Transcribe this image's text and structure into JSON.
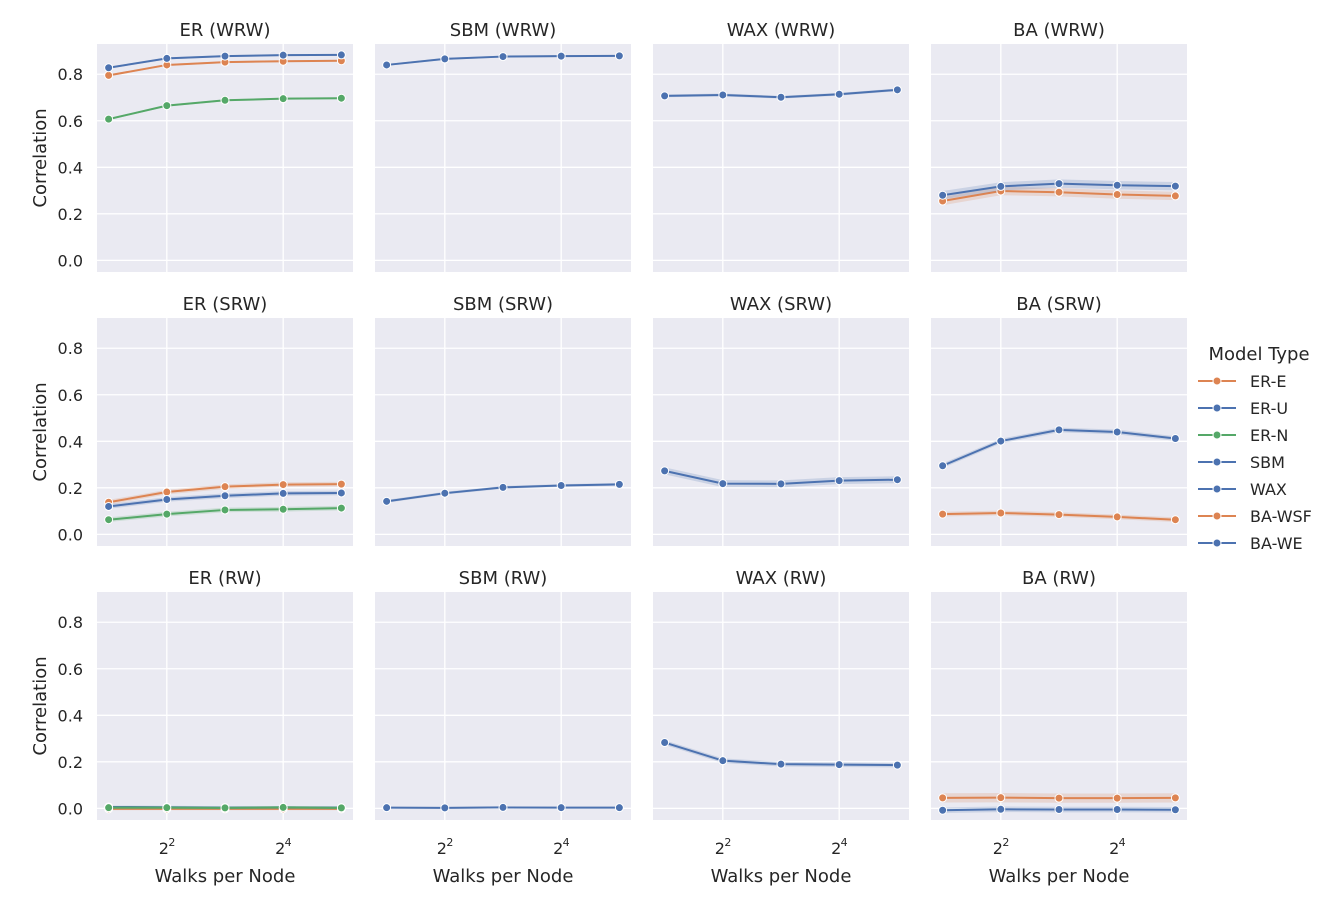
{
  "figure": {
    "x_label": "Walks per Node",
    "y_label": "Correlation",
    "legend_title": "Model Type",
    "legend_placement": "right"
  },
  "series_styles": {
    "ER-E": {
      "color": "#dd8452"
    },
    "ER-U": {
      "color": "#4c72b0"
    },
    "ER-N": {
      "color": "#55a868"
    },
    "SBM": {
      "color": "#4c72b0"
    },
    "WAX": {
      "color": "#4c72b0"
    },
    "BA-WSF": {
      "color": "#dd8452"
    },
    "BA-WE": {
      "color": "#4c72b0"
    }
  },
  "theme": {
    "panel_bg": "#eaeaf2",
    "grid": "#ffffff",
    "marker_edge": "#ffffff"
  },
  "chart_data": {
    "type": "line",
    "x": [
      2,
      4,
      8,
      16,
      32
    ],
    "x_scale": "log2",
    "xticks": [
      {
        "value": 4,
        "base": "2",
        "exp": "2"
      },
      {
        "value": 16,
        "base": "2",
        "exp": "4"
      }
    ],
    "ylim": [
      -0.05,
      0.93
    ],
    "yticks": [
      0.0,
      0.2,
      0.4,
      0.6,
      0.8
    ],
    "ytick_labels": [
      "0.0",
      "0.2",
      "0.4",
      "0.6",
      "0.8"
    ],
    "legend": [
      "ER-E",
      "ER-U",
      "ER-N",
      "SBM",
      "WAX",
      "BA-WSF",
      "BA-WE"
    ],
    "panels": [
      {
        "title": "ER (WRW)",
        "series": [
          {
            "name": "ER-E",
            "values": [
              0.795,
              0.84,
              0.852,
              0.856,
              0.858
            ],
            "ci": 0.004
          },
          {
            "name": "ER-U",
            "values": [
              0.828,
              0.868,
              0.878,
              0.882,
              0.883
            ],
            "ci": 0.004
          },
          {
            "name": "ER-N",
            "values": [
              0.607,
              0.665,
              0.688,
              0.695,
              0.697
            ],
            "ci": 0.004
          }
        ]
      },
      {
        "title": "SBM (WRW)",
        "series": [
          {
            "name": "SBM",
            "values": [
              0.84,
              0.866,
              0.876,
              0.878,
              0.879
            ],
            "ci": 0.004
          }
        ]
      },
      {
        "title": "WAX (WRW)",
        "series": [
          {
            "name": "WAX",
            "values": [
              0.707,
              0.711,
              0.701,
              0.714,
              0.733
            ],
            "ci": 0.006
          }
        ]
      },
      {
        "title": "BA (WRW)",
        "series": [
          {
            "name": "BA-WSF",
            "values": [
              0.255,
              0.298,
              0.293,
              0.283,
              0.277
            ],
            "ci": 0.018
          },
          {
            "name": "BA-WE",
            "values": [
              0.28,
              0.318,
              0.33,
              0.323,
              0.319
            ],
            "ci": 0.018
          }
        ]
      },
      {
        "title": "ER (SRW)",
        "series": [
          {
            "name": "ER-E",
            "values": [
              0.138,
              0.182,
              0.205,
              0.214,
              0.216
            ],
            "ci": 0.01
          },
          {
            "name": "ER-U",
            "values": [
              0.12,
              0.15,
              0.166,
              0.176,
              0.178
            ],
            "ci": 0.01
          },
          {
            "name": "ER-N",
            "values": [
              0.063,
              0.087,
              0.105,
              0.108,
              0.113
            ],
            "ci": 0.01
          }
        ]
      },
      {
        "title": "SBM (SRW)",
        "series": [
          {
            "name": "SBM",
            "values": [
              0.142,
              0.177,
              0.202,
              0.21,
              0.215
            ],
            "ci": 0.006
          }
        ]
      },
      {
        "title": "WAX (SRW)",
        "series": [
          {
            "name": "WAX",
            "values": [
              0.273,
              0.218,
              0.217,
              0.231,
              0.235
            ],
            "ci": 0.015
          }
        ]
      },
      {
        "title": "BA (SRW)",
        "series": [
          {
            "name": "BA-WSF",
            "values": [
              0.087,
              0.092,
              0.085,
              0.075,
              0.063
            ],
            "ci": 0.01
          },
          {
            "name": "BA-WE",
            "values": [
              0.295,
              0.401,
              0.449,
              0.44,
              0.412
            ],
            "ci": 0.01
          }
        ]
      },
      {
        "title": "ER (RW)",
        "series": [
          {
            "name": "ER-E",
            "values": [
              -0.002,
              -0.002,
              -0.002,
              -0.002,
              -0.002
            ],
            "ci": 0.006
          },
          {
            "name": "ER-U",
            "values": [
              0.006,
              0.005,
              0.003,
              0.004,
              0.003
            ],
            "ci": 0.006
          },
          {
            "name": "ER-N",
            "values": [
              0.003,
              0.003,
              0.002,
              0.004,
              0.002
            ],
            "ci": 0.006
          }
        ]
      },
      {
        "title": "SBM (RW)",
        "series": [
          {
            "name": "SBM",
            "values": [
              0.003,
              0.002,
              0.004,
              0.003,
              0.003
            ],
            "ci": 0.004
          }
        ]
      },
      {
        "title": "WAX (RW)",
        "series": [
          {
            "name": "WAX",
            "values": [
              0.283,
              0.205,
              0.19,
              0.188,
              0.186
            ],
            "ci": 0.01
          }
        ]
      },
      {
        "title": "BA (RW)",
        "series": [
          {
            "name": "BA-WSF",
            "values": [
              0.045,
              0.046,
              0.044,
              0.044,
              0.045
            ],
            "ci": 0.02
          },
          {
            "name": "BA-WE",
            "values": [
              -0.008,
              -0.004,
              -0.005,
              -0.005,
              -0.006
            ],
            "ci": 0.012
          }
        ]
      }
    ]
  }
}
